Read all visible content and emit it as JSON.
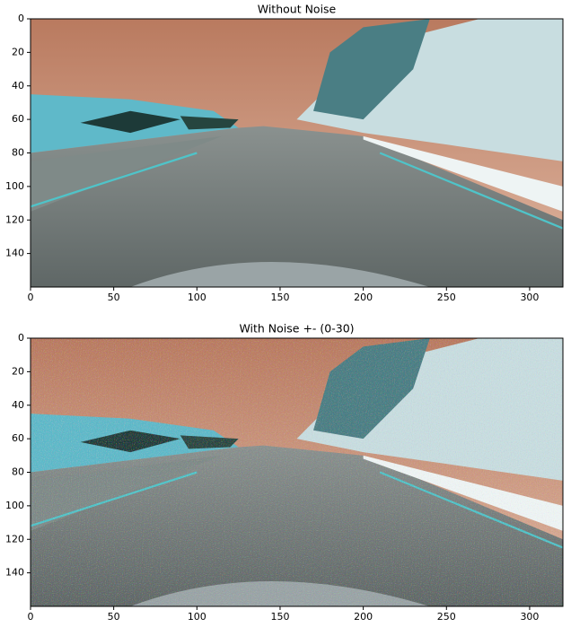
{
  "chart_data": [
    {
      "type": "image",
      "title": "Without Noise",
      "xlim": [
        0,
        320
      ],
      "ylim": [
        160,
        0
      ],
      "xticks": [
        0,
        50,
        100,
        150,
        200,
        250,
        300
      ],
      "yticks": [
        0,
        20,
        40,
        60,
        80,
        100,
        120,
        140
      ]
    },
    {
      "type": "image",
      "title": "With Noise +- (0-30)",
      "xlim": [
        0,
        320
      ],
      "ylim": [
        160,
        0
      ],
      "xticks": [
        0,
        50,
        100,
        150,
        200,
        250,
        300
      ],
      "yticks": [
        0,
        20,
        40,
        60,
        80,
        100,
        120,
        140
      ]
    }
  ]
}
